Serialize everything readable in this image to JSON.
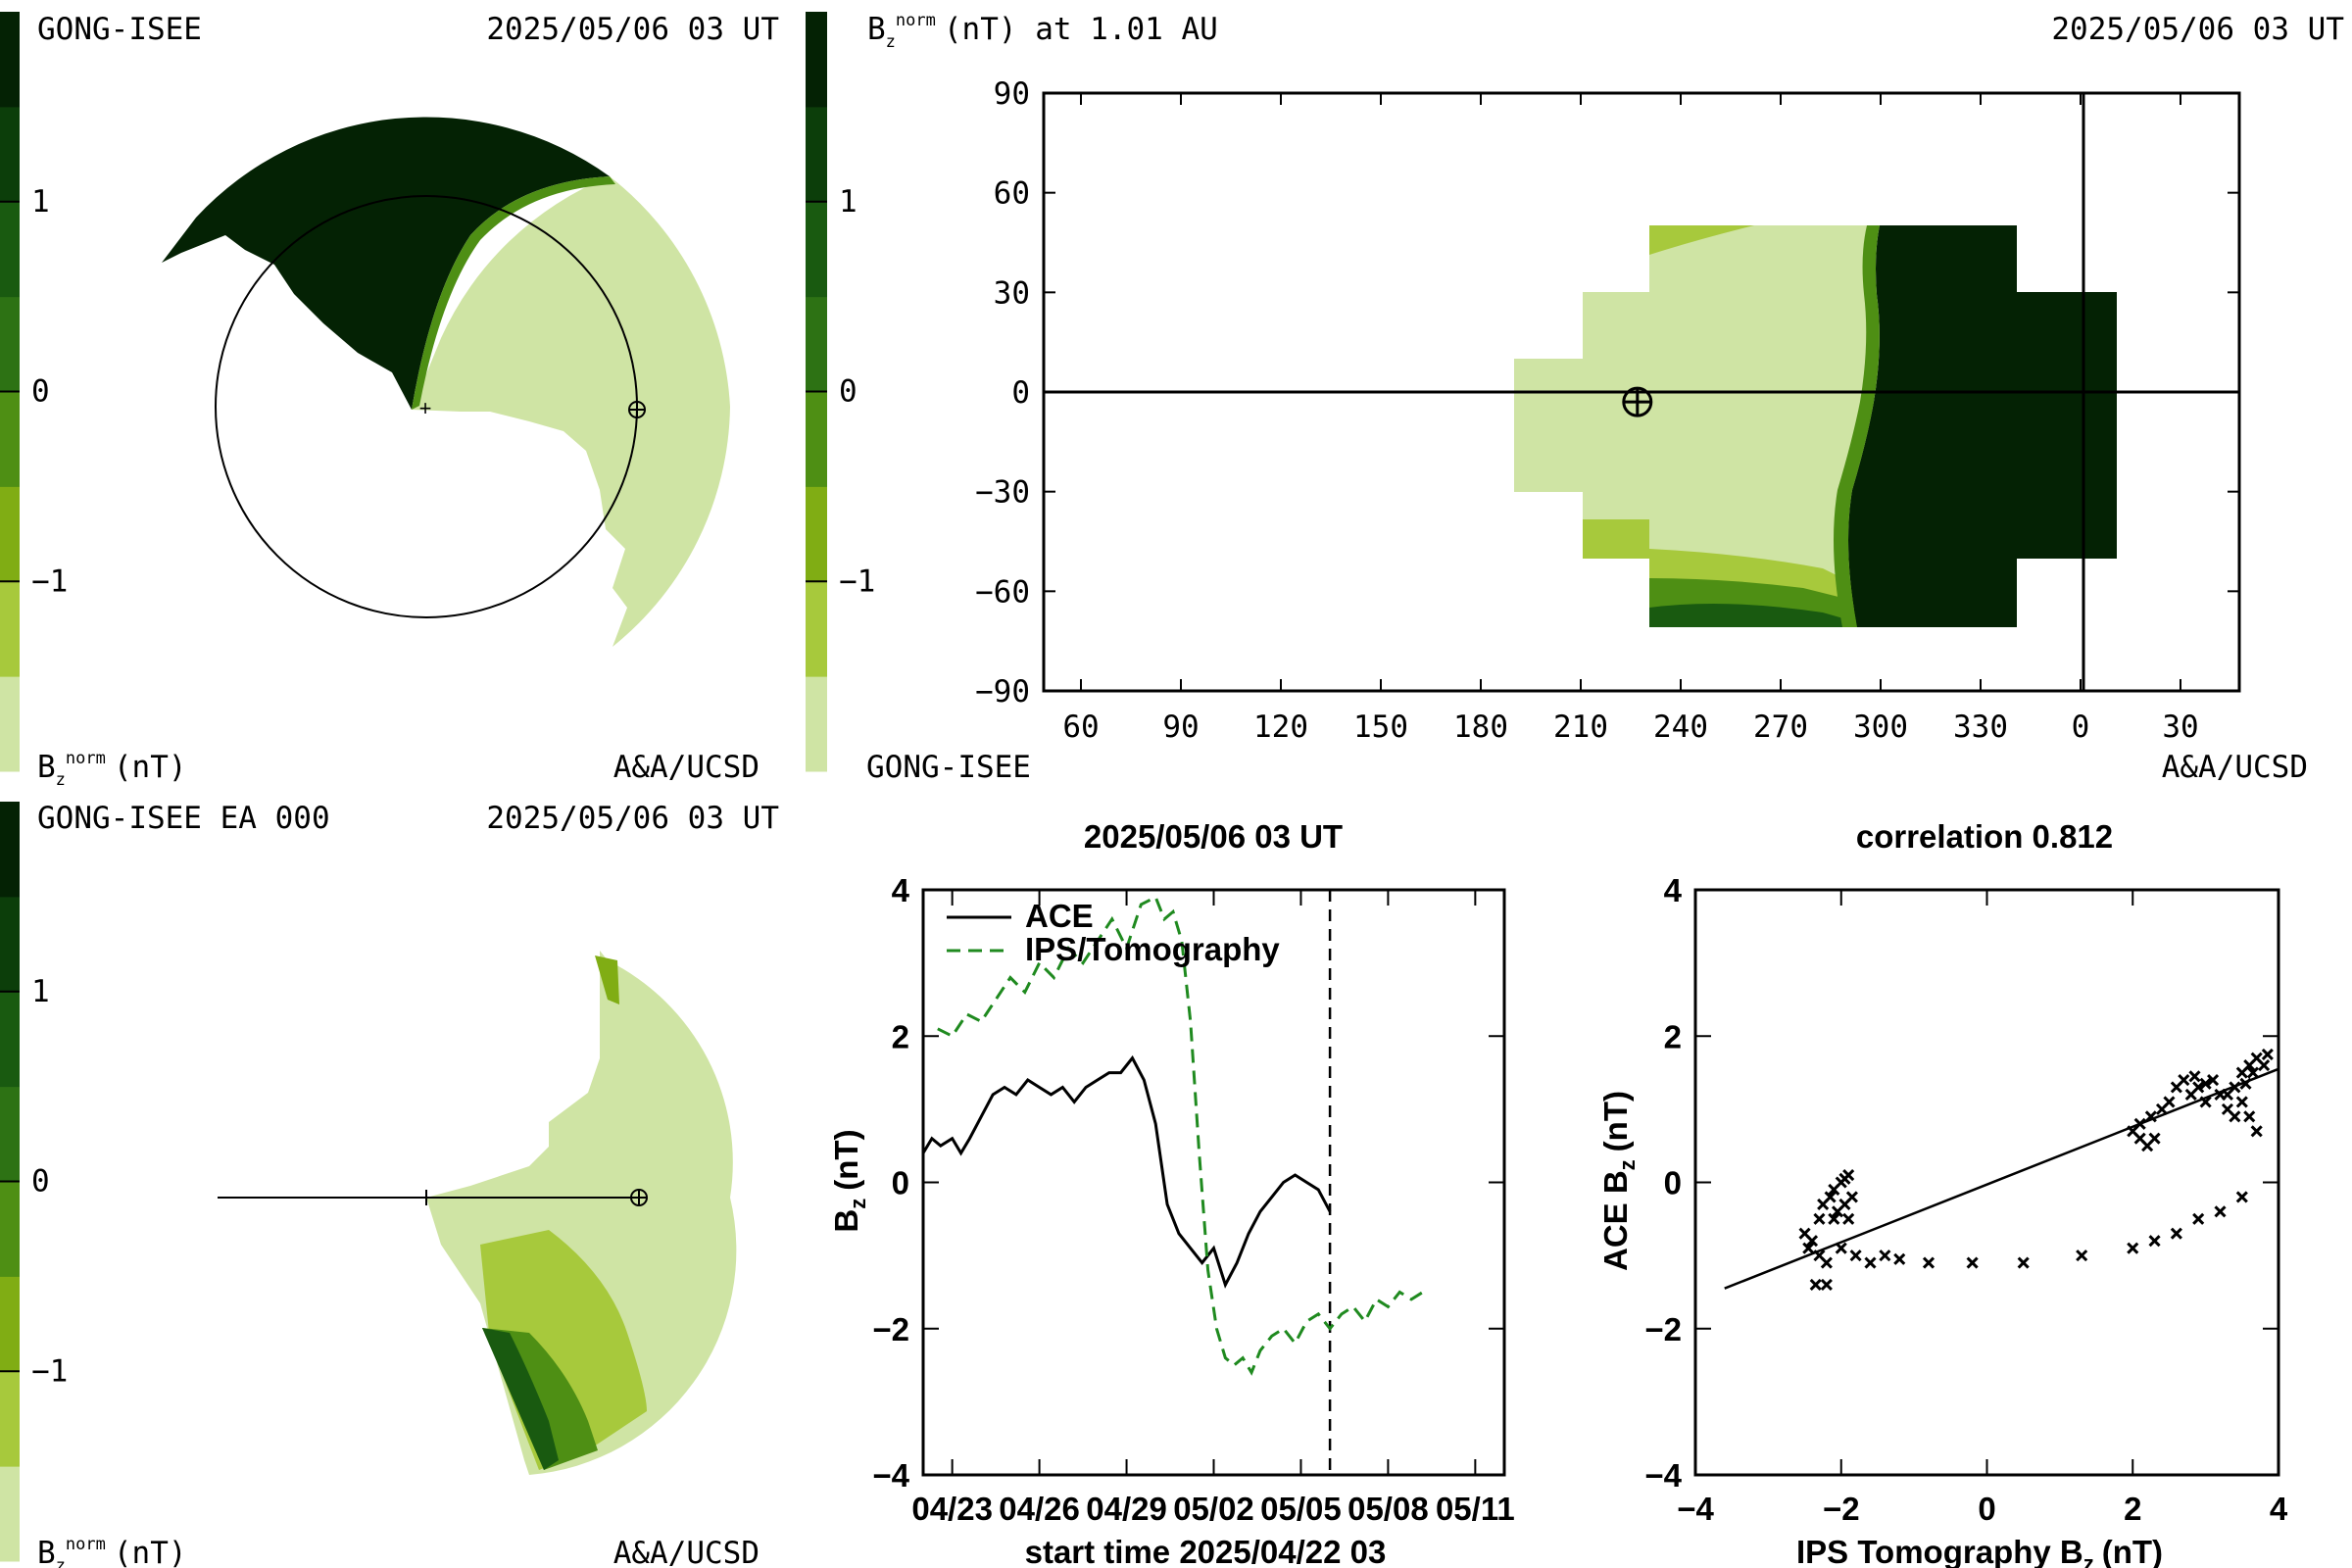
{
  "colors": {
    "scale": [
      "#cfe4a4",
      "#a7c93c",
      "#80ad14",
      "#4e8f14",
      "#2d7214",
      "#195a10",
      "#0c3e0a",
      "#042204"
    ],
    "tomography_line": "#1f8a1f",
    "ace_line": "#000000"
  },
  "colorbar": {
    "ticks": [
      "1",
      "0",
      "−1"
    ],
    "tick_values": [
      1,
      0,
      -1
    ]
  },
  "panel_top_left": {
    "source": "GONG-ISEE",
    "timestamp": "2025/05/06 03 UT",
    "unit_base": "B",
    "unit_sub": "z",
    "unit_sup": "norm",
    "unit_rest": "(nT)",
    "credit": "A&A/UCSD"
  },
  "panel_top_right": {
    "title_base": "B",
    "title_sub": "z",
    "title_sup": "norm",
    "title_rest": "(nT) at 1.01 AU",
    "timestamp": "2025/05/06 03 UT",
    "source": "GONG-ISEE",
    "credit": "A&A/UCSD",
    "x_ticks": [
      "60",
      "90",
      "120",
      "150",
      "180",
      "210",
      "240",
      "270",
      "300",
      "330",
      "0",
      "30"
    ],
    "y_ticks": [
      "90",
      "60",
      "30",
      "0",
      "−30",
      "−60",
      "−90"
    ],
    "earth_marker_longitude": 227,
    "earth_marker_latitude": -3
  },
  "panel_bottom_left": {
    "source": "GONG-ISEE EA 000",
    "timestamp": "2025/05/06 03 UT",
    "unit_base": "B",
    "unit_sub": "z",
    "unit_sup": "norm",
    "unit_rest": "(nT)",
    "credit": "A&A/UCSD"
  },
  "chart_data": [
    {
      "type": "line",
      "title": "2025/05/06 03 UT",
      "xlabel": "start time 2025/04/22 03",
      "ylabel_base": "B",
      "ylabel_sub": "z",
      "ylabel_rest": "(nT)",
      "x_tick_labels": [
        "04/23",
        "04/26",
        "04/29",
        "05/02",
        "05/05",
        "05/08",
        "05/11"
      ],
      "x_tick_days": [
        1,
        4,
        7,
        10,
        13,
        16,
        19
      ],
      "y_tick_labels": [
        "4",
        "2",
        "0",
        "−2",
        "−4"
      ],
      "xlim_days": [
        0,
        20
      ],
      "ylim": [
        -4,
        4
      ],
      "current_time_day": 14,
      "legend_position": "top-left",
      "series": [
        {
          "name": "ACE",
          "style": "solid",
          "x": [
            0,
            0.3,
            0.6,
            1.0,
            1.3,
            1.6,
            2.0,
            2.4,
            2.8,
            3.2,
            3.6,
            4.0,
            4.4,
            4.8,
            5.2,
            5.6,
            6.0,
            6.4,
            6.8,
            7.2,
            7.6,
            8.0,
            8.4,
            8.8,
            9.2,
            9.6,
            10.0,
            10.4,
            10.8,
            11.2,
            11.6,
            12.0,
            12.4,
            12.8,
            13.2,
            13.6,
            14.0
          ],
          "y": [
            0.4,
            0.6,
            0.5,
            0.6,
            0.4,
            0.6,
            0.9,
            1.2,
            1.3,
            1.2,
            1.4,
            1.3,
            1.2,
            1.3,
            1.1,
            1.3,
            1.4,
            1.5,
            1.5,
            1.7,
            1.4,
            0.8,
            -0.3,
            -0.7,
            -0.9,
            -1.1,
            -0.9,
            -1.4,
            -1.1,
            -0.7,
            -0.4,
            -0.2,
            0.0,
            0.1,
            0.0,
            -0.1,
            -0.4
          ]
        },
        {
          "name": "IPS/Tomography",
          "style": "dashed",
          "x": [
            0.5,
            1.0,
            1.5,
            2.0,
            2.5,
            3.0,
            3.5,
            4.0,
            4.5,
            5.0,
            5.5,
            6.0,
            6.5,
            7.0,
            7.5,
            8.0,
            8.3,
            8.6,
            8.9,
            9.2,
            9.5,
            9.8,
            10.1,
            10.4,
            10.7,
            11.0,
            11.3,
            11.6,
            12.0,
            12.4,
            12.8,
            13.2,
            13.6,
            14.0,
            14.4,
            14.8,
            15.2,
            15.6,
            16.0,
            16.4,
            16.8,
            17.2
          ],
          "y": [
            2.1,
            2.0,
            2.3,
            2.2,
            2.5,
            2.8,
            2.6,
            3.0,
            2.8,
            3.2,
            3.0,
            3.3,
            3.6,
            3.2,
            3.8,
            3.9,
            3.6,
            3.7,
            3.3,
            2.2,
            0.4,
            -1.2,
            -2.0,
            -2.4,
            -2.5,
            -2.4,
            -2.6,
            -2.3,
            -2.1,
            -2.0,
            -2.2,
            -1.9,
            -1.8,
            -2.0,
            -1.8,
            -1.7,
            -1.9,
            -1.6,
            -1.7,
            -1.5,
            -1.6,
            -1.5
          ]
        }
      ]
    },
    {
      "type": "scatter",
      "title": "correlation 0.812",
      "xlabel_base": "IPS Tomography B",
      "xlabel_sub": "z",
      "xlabel_rest": "(nT)",
      "ylabel_base": "ACE B",
      "ylabel_sub": "z",
      "ylabel_rest": "(nT)",
      "x_tick_labels": [
        "−4",
        "−2",
        "0",
        "2",
        "4"
      ],
      "y_tick_labels": [
        "4",
        "2",
        "0",
        "−2",
        "−4"
      ],
      "xlim": [
        -4,
        4
      ],
      "ylim": [
        -4,
        4
      ],
      "fit_line": {
        "x": [
          -3.6,
          4.0
        ],
        "y": [
          -1.45,
          1.55
        ]
      },
      "points": [
        [
          -2.5,
          -0.7
        ],
        [
          -2.4,
          -0.8
        ],
        [
          -2.45,
          -0.9
        ],
        [
          -2.3,
          -1.0
        ],
        [
          -2.2,
          -1.1
        ],
        [
          -2.35,
          -1.4
        ],
        [
          -2.2,
          -1.4
        ],
        [
          -2.3,
          -0.5
        ],
        [
          -2.25,
          -0.3
        ],
        [
          -2.15,
          -0.2
        ],
        [
          -2.1,
          -0.1
        ],
        [
          -2.0,
          0.0
        ],
        [
          -1.95,
          0.05
        ],
        [
          -1.9,
          0.1
        ],
        [
          -2.05,
          -0.4
        ],
        [
          -1.95,
          -0.3
        ],
        [
          -1.85,
          -0.2
        ],
        [
          -2.1,
          -0.5
        ],
        [
          -1.9,
          -0.5
        ],
        [
          -2.0,
          -0.9
        ],
        [
          -1.8,
          -1.0
        ],
        [
          -1.6,
          -1.1
        ],
        [
          -1.4,
          -1.0
        ],
        [
          -1.2,
          -1.05
        ],
        [
          -0.8,
          -1.1
        ],
        [
          -0.2,
          -1.1
        ],
        [
          0.5,
          -1.1
        ],
        [
          1.3,
          -1.0
        ],
        [
          2.0,
          -0.9
        ],
        [
          2.3,
          -0.8
        ],
        [
          2.6,
          -0.7
        ],
        [
          2.9,
          -0.5
        ],
        [
          3.2,
          -0.4
        ],
        [
          3.5,
          -0.2
        ],
        [
          2.0,
          0.7
        ],
        [
          2.1,
          0.6
        ],
        [
          2.2,
          0.5
        ],
        [
          2.3,
          0.6
        ],
        [
          2.1,
          0.8
        ],
        [
          2.25,
          0.9
        ],
        [
          2.4,
          1.0
        ],
        [
          2.5,
          1.1
        ],
        [
          2.6,
          1.3
        ],
        [
          2.7,
          1.4
        ],
        [
          2.8,
          1.2
        ],
        [
          2.9,
          1.3
        ],
        [
          3.0,
          1.1
        ],
        [
          3.1,
          1.4
        ],
        [
          3.2,
          1.2
        ],
        [
          3.3,
          1.0
        ],
        [
          3.4,
          1.3
        ],
        [
          3.5,
          1.5
        ],
        [
          3.6,
          1.6
        ],
        [
          3.7,
          1.7
        ],
        [
          3.8,
          1.6
        ],
        [
          3.85,
          1.75
        ],
        [
          3.5,
          1.1
        ],
        [
          3.6,
          0.9
        ],
        [
          3.7,
          0.7
        ],
        [
          3.4,
          0.9
        ],
        [
          3.3,
          1.2
        ],
        [
          3.0,
          1.35
        ],
        [
          2.85,
          1.45
        ],
        [
          3.55,
          1.35
        ],
        [
          3.65,
          1.5
        ]
      ]
    }
  ]
}
